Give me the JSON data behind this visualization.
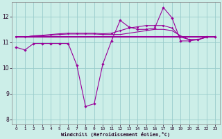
{
  "xlabel": "Windchill (Refroidissement éolien,°C)",
  "bg_color": "#cceee8",
  "grid_color": "#99cccc",
  "line_color": "#990099",
  "xlim": [
    -0.5,
    23.5
  ],
  "ylim": [
    7.8,
    12.55
  ],
  "y_ticks": [
    8,
    9,
    10,
    11,
    12
  ],
  "x_ticks": [
    0,
    1,
    2,
    3,
    4,
    5,
    6,
    7,
    8,
    9,
    10,
    11,
    12,
    13,
    14,
    15,
    16,
    17,
    18,
    19,
    20,
    21,
    22,
    23
  ],
  "line_flat": [
    11.2,
    11.2,
    11.2,
    11.2,
    11.2,
    11.2,
    11.2,
    11.2,
    11.2,
    11.2,
    11.2,
    11.2,
    11.2,
    11.2,
    11.2,
    11.2,
    11.2,
    11.2,
    11.2,
    11.2,
    11.2,
    11.2,
    11.2,
    11.2
  ],
  "line_slight": [
    11.2,
    11.2,
    11.25,
    11.25,
    11.28,
    11.3,
    11.32,
    11.32,
    11.32,
    11.32,
    11.3,
    11.3,
    11.3,
    11.35,
    11.4,
    11.45,
    11.5,
    11.5,
    11.45,
    11.25,
    11.1,
    11.1,
    11.2,
    11.2
  ],
  "line_markers": [
    11.2,
    11.2,
    11.25,
    11.27,
    11.3,
    11.33,
    11.35,
    11.35,
    11.35,
    11.35,
    11.33,
    11.35,
    11.45,
    11.55,
    11.6,
    11.65,
    11.65,
    11.65,
    11.55,
    11.2,
    11.1,
    11.1,
    11.2,
    11.2
  ],
  "line_dip": [
    10.8,
    10.7,
    10.95,
    10.95,
    10.95,
    10.95,
    10.95,
    10.1,
    8.5,
    8.6,
    10.15,
    11.05,
    11.85,
    11.6,
    11.5,
    11.5,
    11.55,
    12.35,
    11.95,
    11.05,
    11.05,
    11.1,
    11.2,
    11.2
  ]
}
